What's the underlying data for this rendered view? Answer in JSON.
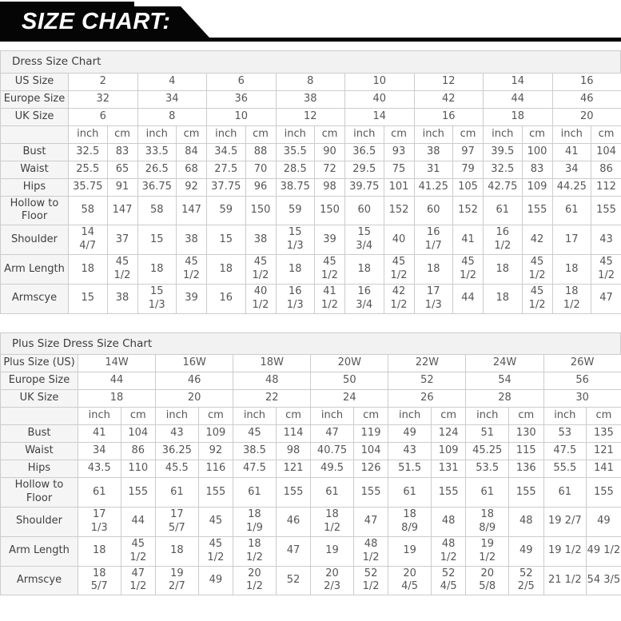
{
  "banner": {
    "title": "SIZE CHART:"
  },
  "units": [
    "inch",
    "cm"
  ],
  "tables": [
    {
      "title": "Dress Size Chart",
      "header_rows": [
        {
          "label": "US Size",
          "values": [
            "2",
            "4",
            "6",
            "8",
            "10",
            "12",
            "14",
            "16"
          ]
        },
        {
          "label": "Europe Size",
          "values": [
            "32",
            "34",
            "36",
            "38",
            "40",
            "42",
            "44",
            "46"
          ]
        },
        {
          "label": "UK Size",
          "values": [
            "6",
            "8",
            "10",
            "12",
            "14",
            "16",
            "18",
            "20"
          ]
        }
      ],
      "unit_headers": [
        "inch",
        "cm"
      ],
      "rows": [
        {
          "label": "Bust",
          "inch": [
            "32.5",
            "33.5",
            "34.5",
            "35.5",
            "36.5",
            "38",
            "39.5",
            "41"
          ],
          "cm": [
            "83",
            "84",
            "88",
            "90",
            "93",
            "97",
            "100",
            "104"
          ]
        },
        {
          "label": "Waist",
          "inch": [
            "25.5",
            "26.5",
            "27.5",
            "28.5",
            "29.5",
            "31",
            "32.5",
            "34"
          ],
          "cm": [
            "65",
            "68",
            "70",
            "72",
            "75",
            "79",
            "83",
            "86"
          ]
        },
        {
          "label": "Hips",
          "inch": [
            "35.75",
            "36.75",
            "37.75",
            "38.75",
            "39.75",
            "41.25",
            "42.75",
            "44.25"
          ],
          "cm": [
            "91",
            "92",
            "96",
            "98",
            "101",
            "105",
            "109",
            "112"
          ]
        },
        {
          "label": "Hollow to Floor",
          "inch": [
            "58",
            "58",
            "59",
            "59",
            "60",
            "60",
            "61",
            "61"
          ],
          "cm": [
            "147",
            "147",
            "150",
            "150",
            "152",
            "152",
            "155",
            "155"
          ]
        },
        {
          "label": "Shoulder",
          "inch": [
            "14\n4/7",
            "15",
            "15",
            "15\n1/3",
            "15\n3/4",
            "16\n1/7",
            "16\n1/2",
            "17"
          ],
          "cm": [
            "37",
            "38",
            "38",
            "39",
            "40",
            "41",
            "42",
            "43"
          ]
        },
        {
          "label": "Arm Length",
          "inch": [
            "18",
            "18",
            "18",
            "18",
            "18",
            "18",
            "18",
            "18"
          ],
          "cm": [
            "45\n1/2",
            "45\n1/2",
            "45\n1/2",
            "45\n1/2",
            "45\n1/2",
            "45\n1/2",
            "45\n1/2",
            "45\n1/2"
          ]
        },
        {
          "label": "Armscye",
          "inch": [
            "15",
            "15\n1/3",
            "16",
            "16\n1/3",
            "16\n3/4",
            "17\n1/3",
            "18",
            "18\n1/2"
          ],
          "cm": [
            "38",
            "39",
            "40\n1/2",
            "41\n1/2",
            "42\n1/2",
            "44",
            "45\n1/2",
            "47"
          ]
        }
      ]
    },
    {
      "title": "Plus Size Dress Size Chart",
      "header_rows": [
        {
          "label": "Plus Size (US)",
          "values": [
            "14W",
            "16W",
            "18W",
            "20W",
            "22W",
            "24W",
            "26W"
          ]
        },
        {
          "label": "Europe Size",
          "values": [
            "44",
            "46",
            "48",
            "50",
            "52",
            "54",
            "56"
          ]
        },
        {
          "label": "UK Size",
          "values": [
            "18",
            "20",
            "22",
            "24",
            "26",
            "28",
            "30"
          ]
        }
      ],
      "unit_headers": [
        "inch",
        "cm"
      ],
      "rows": [
        {
          "label": "Bust",
          "inch": [
            "41",
            "43",
            "45",
            "47",
            "49",
            "51",
            "53"
          ],
          "cm": [
            "104",
            "109",
            "114",
            "119",
            "124",
            "130",
            "135"
          ]
        },
        {
          "label": "Waist",
          "inch": [
            "34",
            "36.25",
            "38.5",
            "40.75",
            "43",
            "45.25",
            "47.5"
          ],
          "cm": [
            "86",
            "92",
            "98",
            "104",
            "109",
            "115",
            "121"
          ]
        },
        {
          "label": "Hips",
          "inch": [
            "43.5",
            "45.5",
            "47.5",
            "49.5",
            "51.5",
            "53.5",
            "55.5"
          ],
          "cm": [
            "110",
            "116",
            "121",
            "126",
            "131",
            "136",
            "141"
          ]
        },
        {
          "label": "Hollow to Floor",
          "inch": [
            "61",
            "61",
            "61",
            "61",
            "61",
            "61",
            "61"
          ],
          "cm": [
            "155",
            "155",
            "155",
            "155",
            "155",
            "155",
            "155"
          ]
        },
        {
          "label": "Shoulder",
          "inch": [
            "17\n1/3",
            "17\n5/7",
            "18\n1/9",
            "18\n1/2",
            "18\n8/9",
            "18\n8/9",
            "19 2/7"
          ],
          "cm": [
            "44",
            "45",
            "46",
            "47",
            "48",
            "48",
            "49"
          ]
        },
        {
          "label": "Arm Length",
          "inch": [
            "18",
            "18",
            "18\n1/2",
            "19",
            "19",
            "19\n1/2",
            "19 1/2"
          ],
          "cm": [
            "45\n1/2",
            "45\n1/2",
            "47",
            "48\n1/2",
            "48\n1/2",
            "49",
            "49 1/2"
          ]
        },
        {
          "label": "Armscye",
          "inch": [
            "18\n5/7",
            "19\n2/7",
            "20\n1/2",
            "20\n2/3",
            "20\n4/5",
            "20\n5/8",
            "21 1/2"
          ],
          "cm": [
            "47\n1/2",
            "49",
            "52",
            "52\n1/2",
            "52\n4/5",
            "52\n2/5",
            "54 3/5"
          ]
        }
      ]
    }
  ]
}
